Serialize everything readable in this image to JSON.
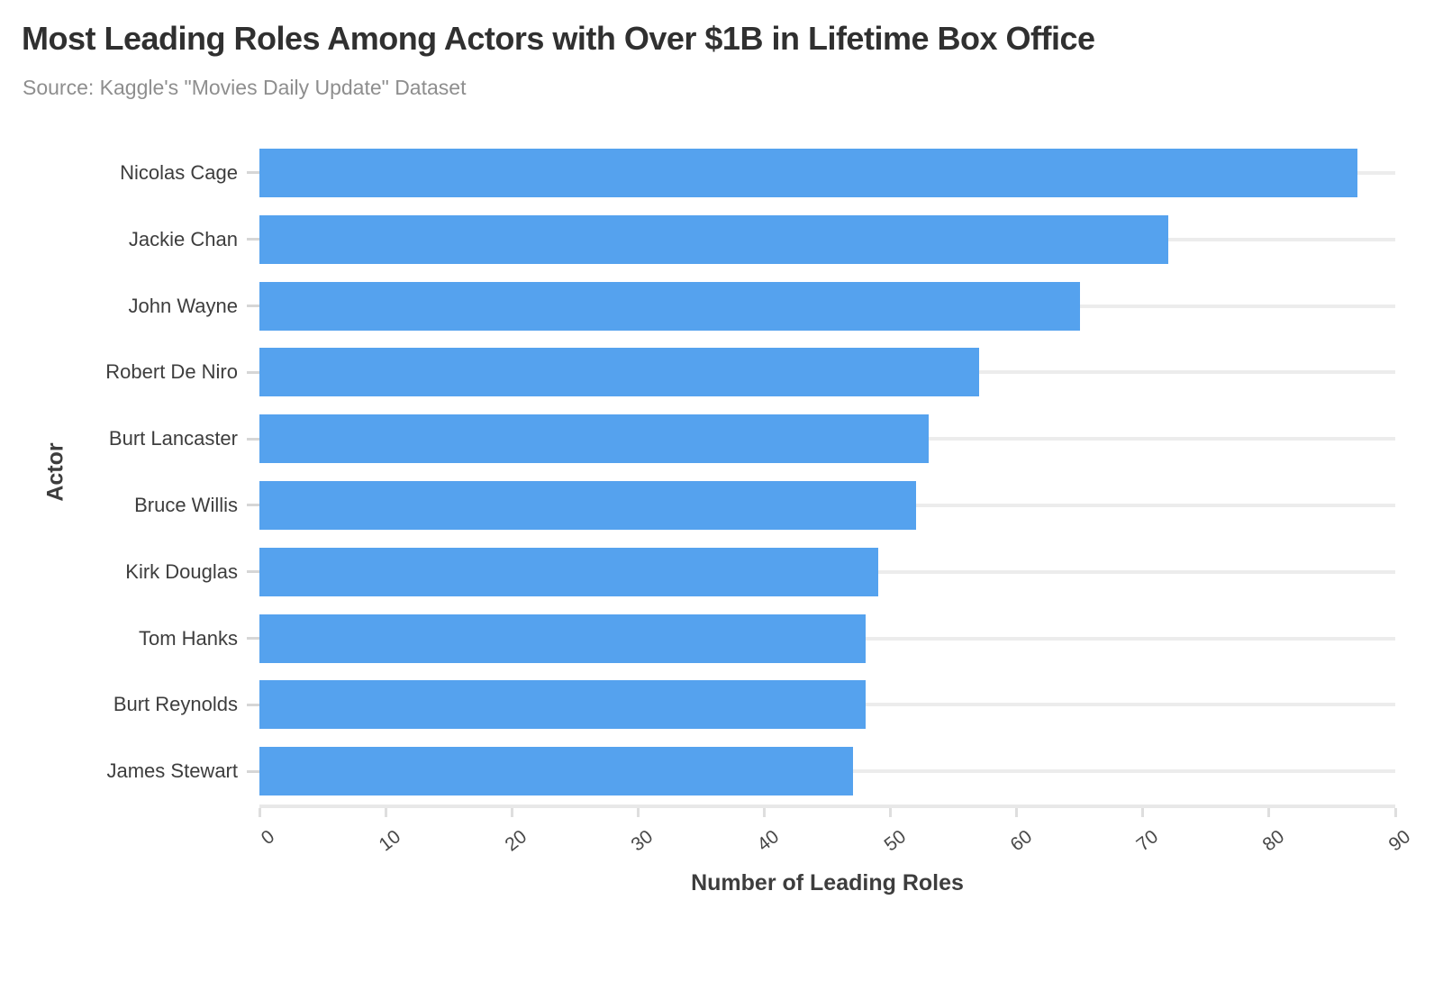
{
  "page": {
    "title": "Most Leading Roles Among Actors with Over $1B in Lifetime Box Office",
    "subtitle": "Source: Kaggle's \"Movies Daily Update\" Dataset"
  },
  "chart_data": {
    "type": "bar",
    "orientation": "horizontal",
    "title": "Most Leading Roles Among Actors with Over $1B in Lifetime Box Office",
    "subtitle": "Source: Kaggle's \"Movies Daily Update\" Dataset",
    "categories": [
      "Nicolas Cage",
      "Jackie Chan",
      "John Wayne",
      "Robert De Niro",
      "Burt Lancaster",
      "Bruce Willis",
      "Kirk Douglas",
      "Tom Hanks",
      "Burt Reynolds",
      "James Stewart"
    ],
    "values": [
      87,
      72,
      65,
      57,
      53,
      52,
      49,
      48,
      48,
      47
    ],
    "xlabel": "Number of Leading Roles",
    "ylabel": "Actor",
    "xlim": [
      0,
      90
    ],
    "xticks": [
      0,
      10,
      20,
      30,
      40,
      50,
      60,
      70,
      80,
      90
    ],
    "xtick_rotation_deg": -38,
    "grid": "horizontal-only",
    "legend": "none",
    "bar_color": "#55a2ee"
  },
  "colors": {
    "bar": "#55a2ee",
    "title": "#303030",
    "subtitle": "#8e8e8e",
    "axis_title": "#3d3d3d",
    "category_label": "#3d3d3d",
    "tick_label": "#474747",
    "gridline": "#ececec",
    "axis_line": "#e8e8e8",
    "background": "#ffffff"
  }
}
